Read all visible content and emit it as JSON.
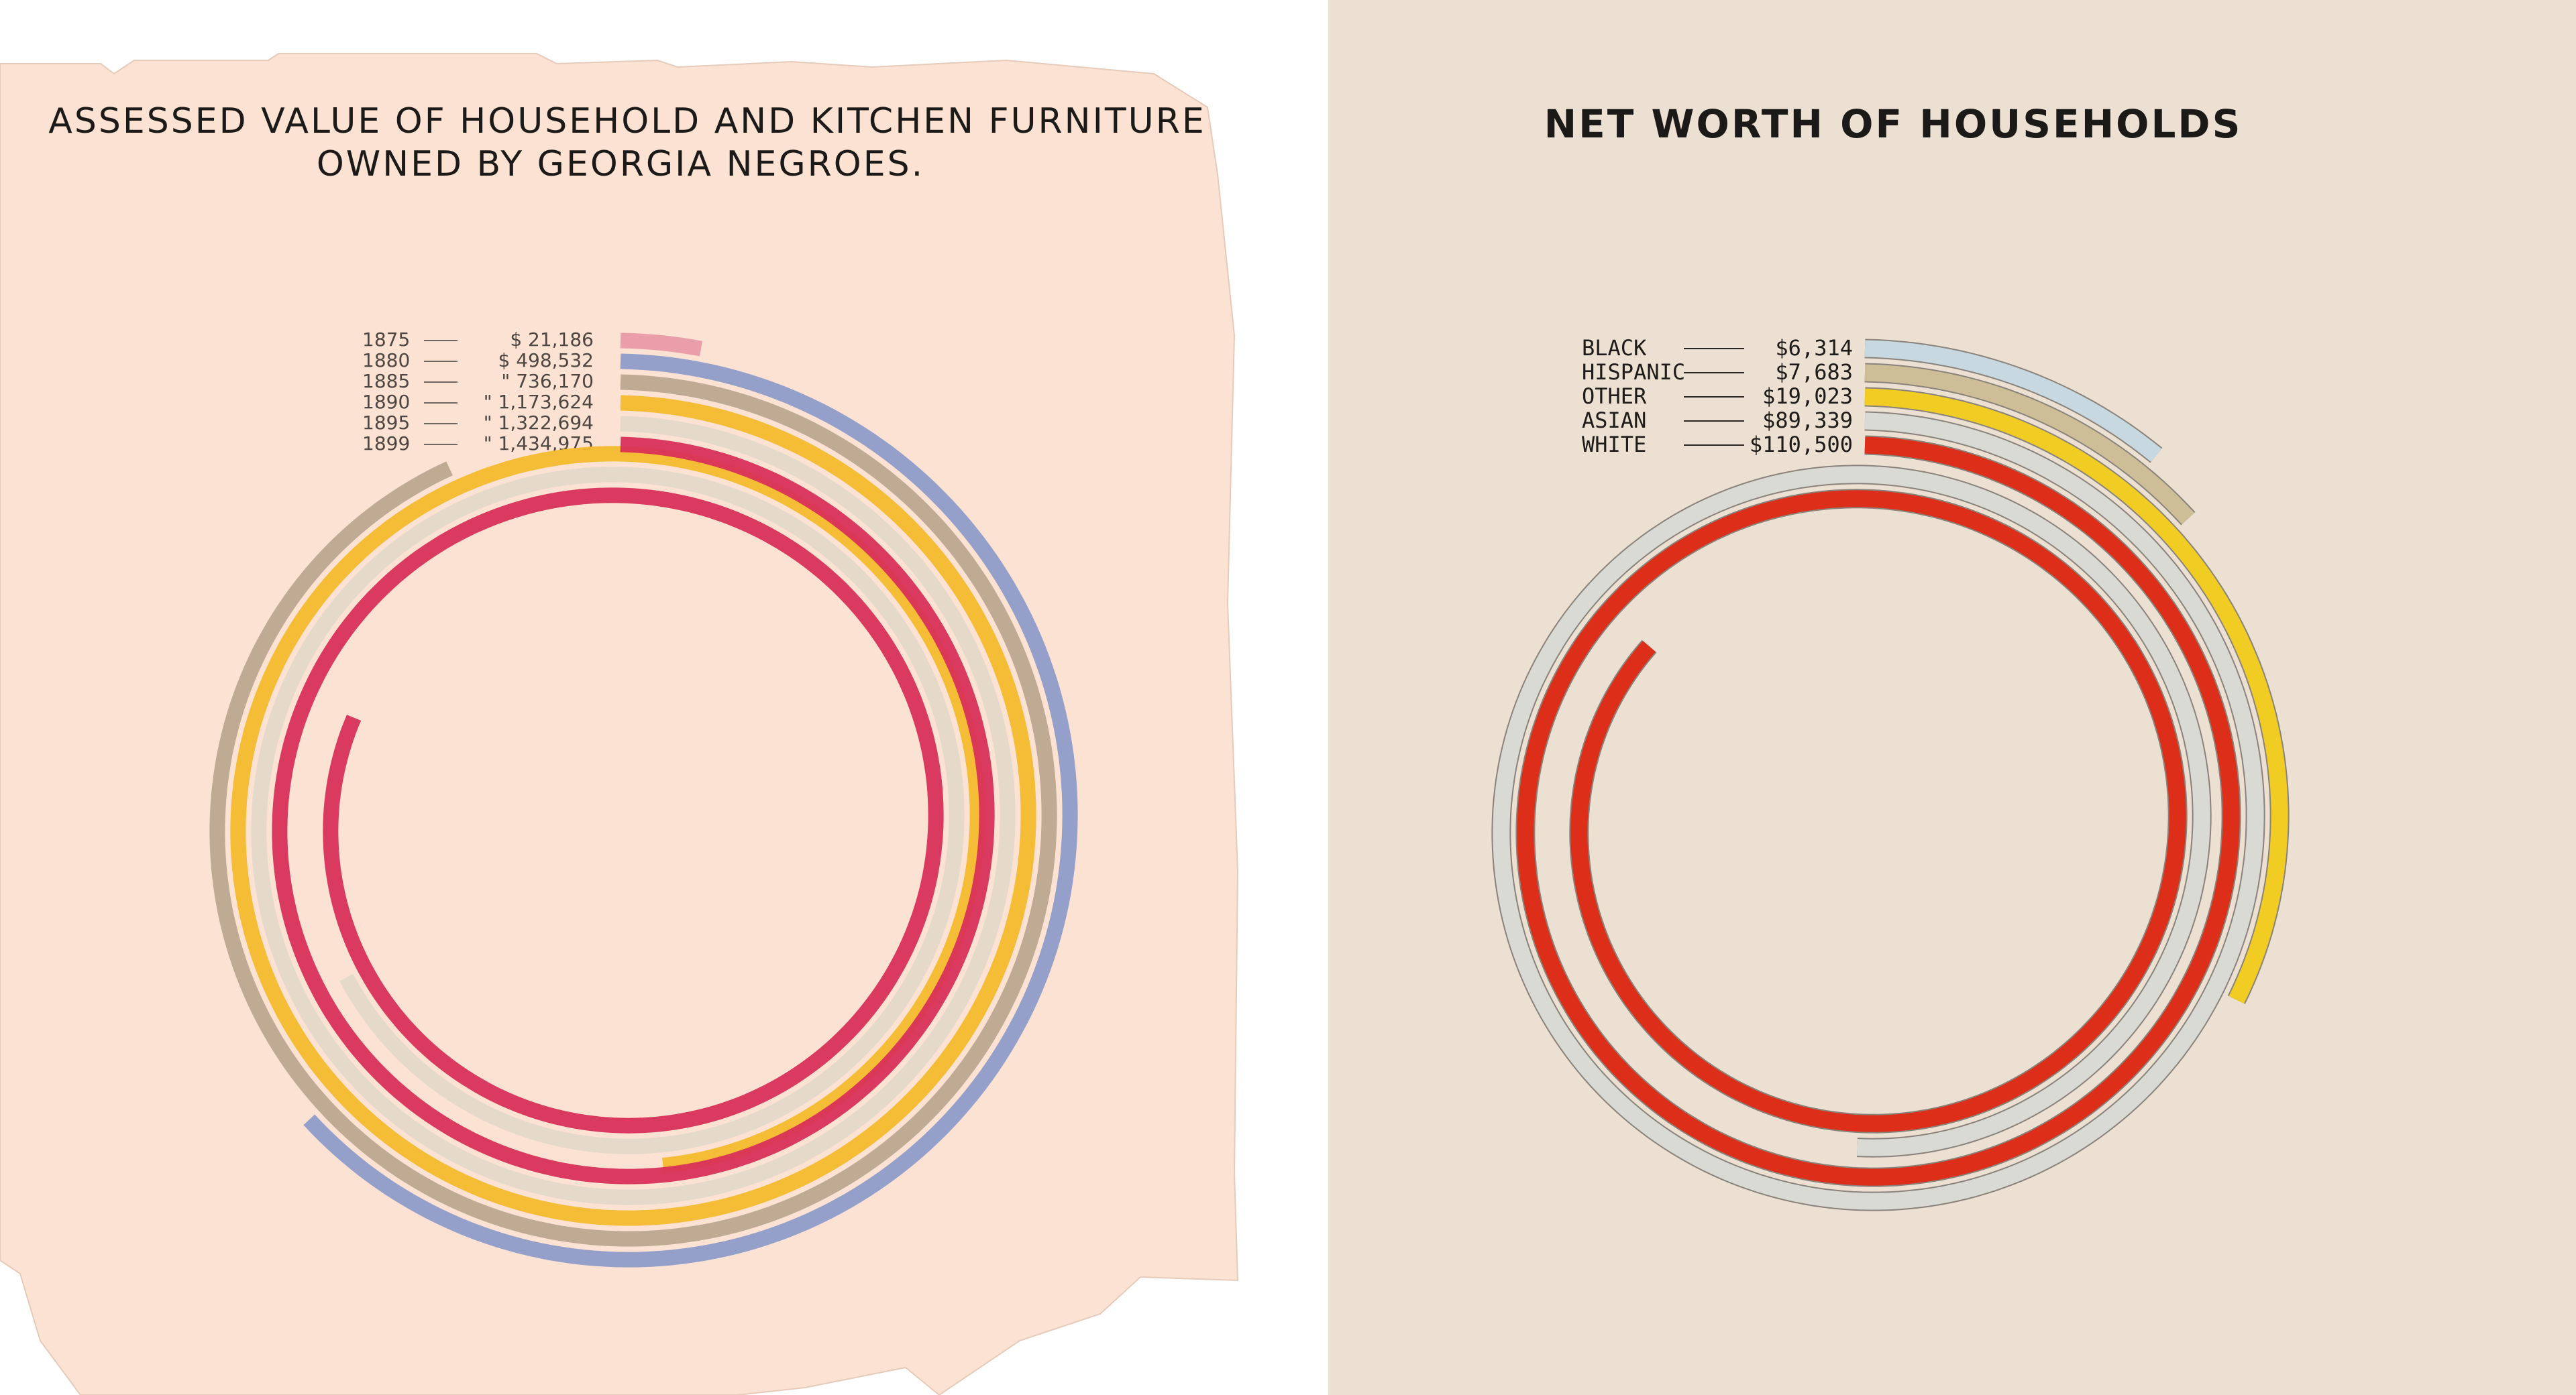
{
  "chart_data": [
    {
      "type": "spiral",
      "title_line1": "ASSESSED VALUE OF HOUSEHOLD AND KITCHEN FURNITURE",
      "title_line2": "OWNED BY GEORGIA NEGROES.",
      "series": [
        {
          "year": "1875",
          "label": "$ 21,186",
          "value": 21186,
          "color": "#e99aa8"
        },
        {
          "year": "1880",
          "label": "$ 498,532",
          "value": 498532,
          "color": "#8e9cc9"
        },
        {
          "year": "1885",
          "label": "\" 736,170",
          "value": 736170,
          "color": "#bca78f"
        },
        {
          "year": "1890",
          "label": "\" 1,173,624",
          "value": 1173624,
          "color": "#f4b92d"
        },
        {
          "year": "1895",
          "label": "\" 1,322,694",
          "value": 1322694,
          "color": "#e4d8c8"
        },
        {
          "year": "1899",
          "label": "\" 1,434,975",
          "value": 1434975,
          "color": "#d9305a"
        }
      ]
    },
    {
      "type": "spiral",
      "title": "NET WORTH OF HOUSEHOLDS",
      "series": [
        {
          "name": "BLACK",
          "label": "$6,314",
          "value": 6314,
          "color": "#c7d8e0"
        },
        {
          "name": "HISPANIC",
          "label": "$7,683",
          "value": 7683,
          "color": "#cdbe98"
        },
        {
          "name": "OTHER",
          "label": "$19,023",
          "value": 19023,
          "color": "#f1cd24"
        },
        {
          "name": "ASIAN",
          "label": "$89,339",
          "value": 89339,
          "color": "#d9dad3"
        },
        {
          "name": "WHITE",
          "label": "$110,500",
          "value": 110500,
          "color": "#dc2e18"
        }
      ]
    }
  ]
}
